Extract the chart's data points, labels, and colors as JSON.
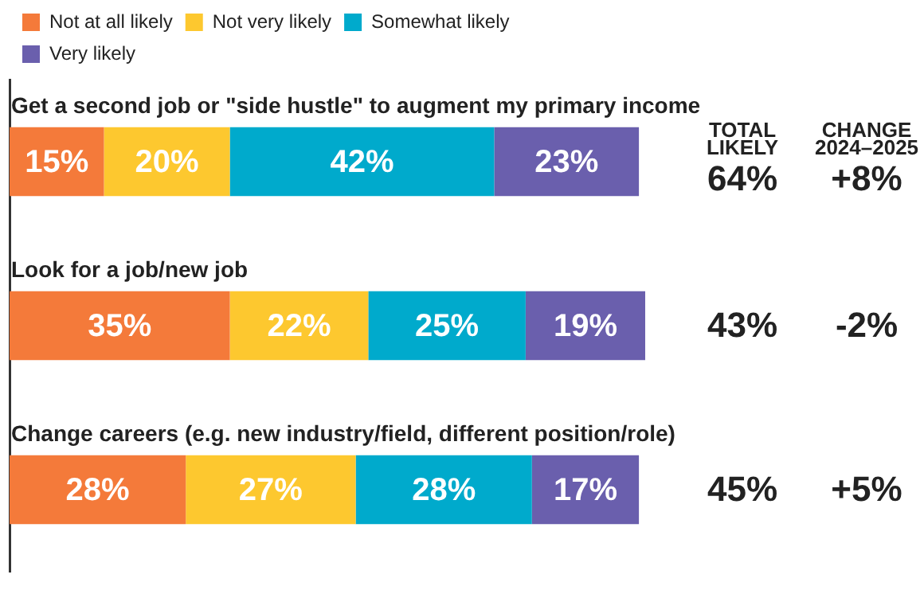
{
  "chart_data": {
    "type": "bar",
    "orientation": "horizontal",
    "stacked": true,
    "categories": [
      "Get a second job or \"side hustle\" to augment my primary income",
      "Look for a job/new job",
      "Change careers (e.g. new industry/field, different position/role)"
    ],
    "series": [
      {
        "name": "Not at all likely",
        "color": "#f47a3a",
        "values": [
          15,
          35,
          28
        ],
        "value_labels": [
          "15%",
          "35%",
          "28%"
        ]
      },
      {
        "name": "Not very likely",
        "color": "#fdc82f",
        "values": [
          20,
          22,
          27
        ],
        "value_labels": [
          "20%",
          "22%",
          "27%"
        ]
      },
      {
        "name": "Somewhat likely",
        "color": "#00aacc",
        "values": [
          42,
          25,
          28
        ],
        "value_labels": [
          "42%",
          "25%",
          "28%"
        ]
      },
      {
        "name": "Very likely",
        "color": "#6a5fad",
        "values": [
          23,
          19,
          17
        ],
        "value_labels": [
          "23%",
          "19%",
          "17%"
        ]
      }
    ],
    "xlim": [
      0,
      101
    ],
    "tick_labels": false,
    "grid": false,
    "legend": "top left",
    "annotations": [
      "TOTAL LIKELY",
      "CHANGE 2024–2025",
      "64%",
      "+8%",
      "43%",
      "-2%",
      "45%",
      "+5%"
    ]
  }
}
